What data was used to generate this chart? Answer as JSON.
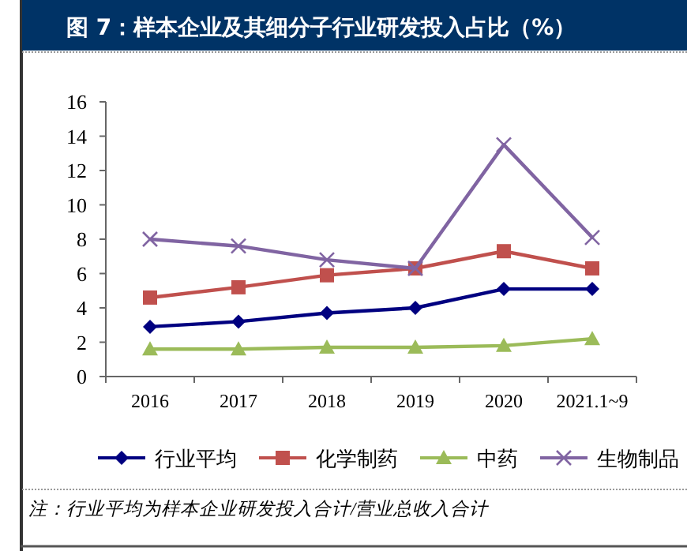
{
  "chart_data": {
    "type": "line",
    "title": "图 7：样本企业及其细分子行业研发投入占比（%）",
    "categories": [
      "2016",
      "2017",
      "2018",
      "2019",
      "2020",
      "2021.1~9"
    ],
    "series": [
      {
        "name": "行业平均",
        "color": "#000080",
        "marker": "diamond",
        "values": [
          2.9,
          3.2,
          3.7,
          4.0,
          5.1,
          5.1
        ]
      },
      {
        "name": "化学制药",
        "color": "#c0504d",
        "marker": "square",
        "values": [
          4.6,
          5.2,
          5.9,
          6.3,
          7.3,
          6.3
        ]
      },
      {
        "name": "中药",
        "color": "#9bbb59",
        "marker": "triangle",
        "values": [
          1.6,
          1.6,
          1.7,
          1.7,
          1.8,
          2.2
        ]
      },
      {
        "name": "生物制品",
        "color": "#8064a2",
        "marker": "cross",
        "values": [
          8.0,
          7.6,
          6.8,
          6.3,
          13.5,
          8.1
        ]
      }
    ],
    "ylim": [
      0,
      16
    ],
    "yticks": [
      0,
      2,
      4,
      6,
      8,
      10,
      12,
      14,
      16
    ],
    "legend": "bottom",
    "annotations": [
      "注：行业平均为样本企业研发投入合计/营业总收入合计"
    ]
  }
}
